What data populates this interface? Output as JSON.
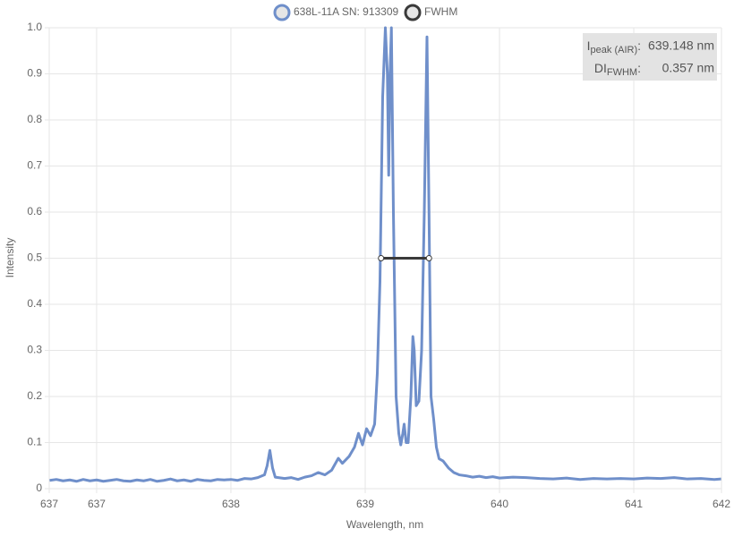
{
  "chart_data": {
    "type": "line",
    "xlabel": "Wavelength, nm",
    "ylabel": "Intensity",
    "xlim": [
      636.647,
      641.653
    ],
    "xticks": [
      {
        "value": 636.647,
        "label": "637"
      },
      637,
      638,
      639,
      640,
      641,
      {
        "value": 641.653,
        "label": "642"
      }
    ],
    "ylim": [
      0,
      1
    ],
    "yticks": [
      0,
      0.1,
      0.2,
      0.3,
      0.4,
      0.5,
      0.6,
      0.7,
      0.8,
      0.9,
      {
        "value": 1,
        "label": "1.0"
      }
    ],
    "grid": true,
    "legend": "top",
    "series": [
      {
        "name": "638L-11A SN: 913309",
        "color": "#6f8fca",
        "x": [
          636.65,
          636.7,
          636.75,
          636.8,
          636.85,
          636.9,
          636.95,
          637.0,
          637.05,
          637.1,
          637.15,
          637.2,
          637.25,
          637.3,
          637.35,
          637.4,
          637.45,
          637.5,
          637.55,
          637.6,
          637.65,
          637.7,
          637.75,
          637.8,
          637.85,
          637.9,
          637.95,
          638.0,
          638.05,
          638.1,
          638.15,
          638.2,
          638.25,
          638.27,
          638.29,
          638.31,
          638.33,
          638.4,
          638.45,
          638.5,
          638.55,
          638.6,
          638.65,
          638.7,
          638.75,
          638.8,
          638.83,
          638.88,
          638.92,
          638.95,
          638.98,
          639.01,
          639.04,
          639.07,
          639.09,
          639.11,
          639.13,
          639.15,
          639.165,
          639.175,
          639.185,
          639.195,
          639.21,
          639.23,
          639.25,
          639.265,
          639.28,
          639.29,
          639.305,
          639.32,
          639.34,
          639.355,
          639.365,
          639.38,
          639.4,
          639.42,
          639.44,
          639.46,
          639.475,
          639.49,
          639.51,
          639.53,
          639.55,
          639.58,
          639.62,
          639.66,
          639.7,
          639.75,
          639.8,
          639.85,
          639.9,
          639.95,
          640.0,
          640.1,
          640.2,
          640.3,
          640.4,
          640.5,
          640.6,
          640.7,
          640.8,
          640.9,
          641.0,
          641.1,
          641.2,
          641.3,
          641.4,
          641.5,
          641.6,
          641.65
        ],
        "values": [
          0.018,
          0.02,
          0.017,
          0.019,
          0.016,
          0.02,
          0.017,
          0.019,
          0.016,
          0.018,
          0.02,
          0.017,
          0.016,
          0.019,
          0.017,
          0.02,
          0.016,
          0.018,
          0.021,
          0.017,
          0.019,
          0.016,
          0.02,
          0.018,
          0.017,
          0.02,
          0.019,
          0.02,
          0.018,
          0.022,
          0.021,
          0.024,
          0.03,
          0.05,
          0.083,
          0.045,
          0.025,
          0.022,
          0.024,
          0.02,
          0.025,
          0.028,
          0.035,
          0.03,
          0.04,
          0.066,
          0.055,
          0.07,
          0.09,
          0.12,
          0.095,
          0.13,
          0.115,
          0.14,
          0.25,
          0.45,
          0.85,
          1.0,
          0.9,
          0.68,
          0.9,
          1.0,
          0.6,
          0.2,
          0.12,
          0.095,
          0.12,
          0.14,
          0.1,
          0.1,
          0.2,
          0.33,
          0.3,
          0.18,
          0.19,
          0.3,
          0.6,
          0.98,
          0.6,
          0.2,
          0.15,
          0.09,
          0.065,
          0.06,
          0.045,
          0.035,
          0.03,
          0.028,
          0.025,
          0.027,
          0.024,
          0.026,
          0.023,
          0.025,
          0.024,
          0.022,
          0.021,
          0.023,
          0.02,
          0.022,
          0.021,
          0.022,
          0.021,
          0.023,
          0.022,
          0.024,
          0.021,
          0.022,
          0.02,
          0.021
        ]
      },
      {
        "name": "FWHM",
        "color": "#3a3a3a",
        "x": [
          639.118,
          639.475
        ],
        "values": [
          0.5,
          0.5
        ]
      }
    ],
    "annotations": [
      {
        "label": "I",
        "sub": "peak (AIR)",
        "sep": ":",
        "value": "639.148 nm"
      },
      {
        "label": "DI",
        "sub": "FWHM",
        "sep": ":",
        "value": "0.357 nm"
      }
    ]
  }
}
